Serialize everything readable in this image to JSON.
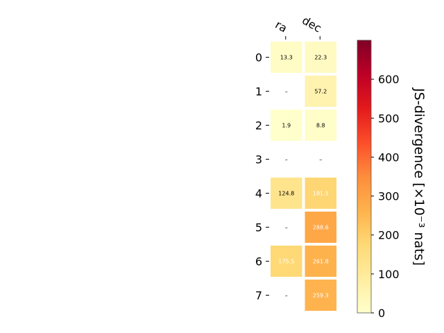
{
  "chart_data": {
    "type": "heatmap",
    "columns": [
      "ra",
      "dec"
    ],
    "rows": [
      "0",
      "1",
      "2",
      "3",
      "4",
      "5",
      "6",
      "7"
    ],
    "values": [
      [
        13.3,
        22.3
      ],
      [
        null,
        57.2
      ],
      [
        1.9,
        8.8
      ],
      [
        null,
        null
      ],
      [
        124.8,
        181.5
      ],
      [
        null,
        288.6
      ],
      [
        175.5,
        261.8
      ],
      [
        null,
        259.3
      ]
    ],
    "missing_label": "–",
    "colorbar": {
      "label": "JS-divergence [×10⁻³ nats]",
      "range": [
        0,
        700
      ],
      "ticks": [
        0,
        100,
        200,
        300,
        400,
        500,
        600
      ],
      "colormap": "YlOrRd"
    }
  }
}
